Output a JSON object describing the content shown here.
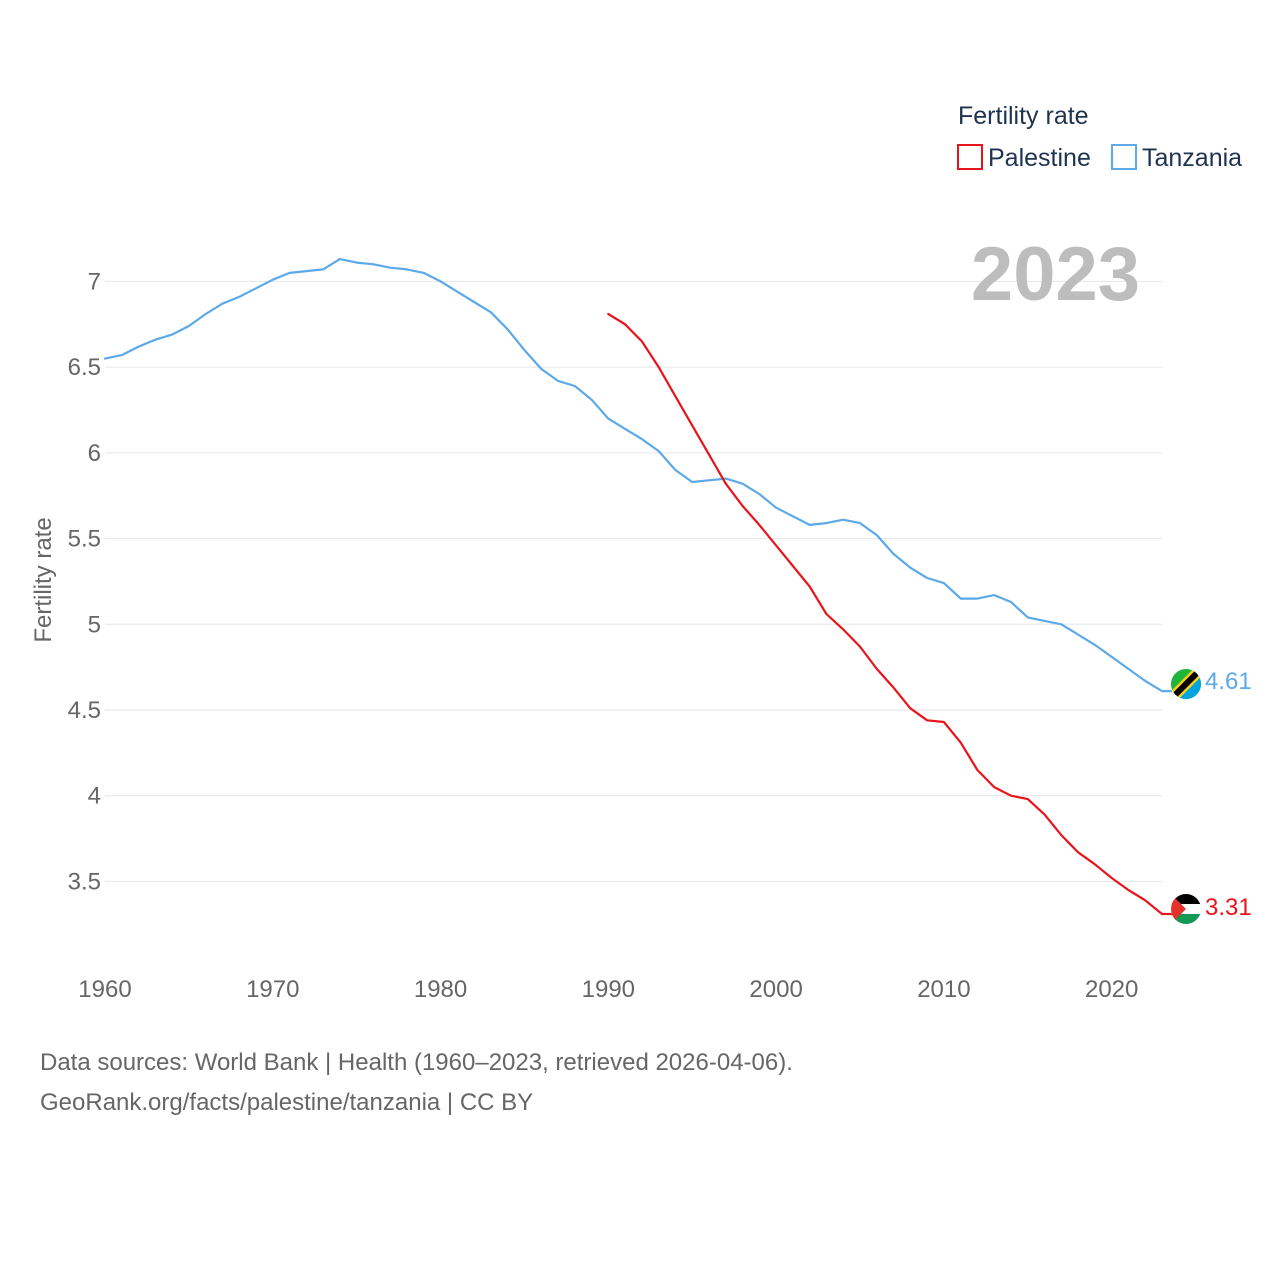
{
  "chart_data": {
    "type": "line",
    "title": "",
    "legend_title": "Fertility rate",
    "ylabel": "Fertility rate",
    "xlabel": "",
    "xlim": [
      1960,
      2023
    ],
    "ylim": [
      3.1,
      7.3
    ],
    "x_ticks": [
      1960,
      1970,
      1980,
      1990,
      2000,
      2010,
      2020
    ],
    "y_ticks": [
      3.5,
      4,
      4.5,
      5,
      5.5,
      6,
      6.5,
      7
    ],
    "current_year_label": "2023",
    "legend_position": "top-right",
    "series": [
      {
        "name": "Palestine",
        "color": "#e8141c",
        "end_label": "3.31",
        "flag": "palestine",
        "x": [
          1990,
          1991,
          1992,
          1993,
          1994,
          1995,
          1996,
          1997,
          1998,
          1999,
          2000,
          2001,
          2002,
          2003,
          2004,
          2005,
          2006,
          2007,
          2008,
          2009,
          2010,
          2011,
          2012,
          2013,
          2014,
          2015,
          2016,
          2017,
          2018,
          2019,
          2020,
          2021,
          2022,
          2023
        ],
        "values": [
          6.81,
          6.75,
          6.65,
          6.5,
          6.33,
          6.16,
          5.99,
          5.82,
          5.69,
          5.58,
          5.46,
          5.34,
          5.22,
          5.06,
          4.97,
          4.87,
          4.74,
          4.63,
          4.51,
          4.44,
          4.43,
          4.31,
          4.15,
          4.05,
          4.0,
          3.98,
          3.89,
          3.77,
          3.67,
          3.6,
          3.52,
          3.45,
          3.39,
          3.31
        ]
      },
      {
        "name": "Tanzania",
        "color": "#5ca9e8",
        "end_label": "4.61",
        "flag": "tanzania",
        "x": [
          1960,
          1961,
          1962,
          1963,
          1964,
          1965,
          1966,
          1967,
          1968,
          1969,
          1970,
          1971,
          1972,
          1973,
          1974,
          1975,
          1976,
          1977,
          1978,
          1979,
          1980,
          1981,
          1982,
          1983,
          1984,
          1985,
          1986,
          1987,
          1988,
          1989,
          1990,
          1991,
          1992,
          1993,
          1994,
          1995,
          1996,
          1997,
          1998,
          1999,
          2000,
          2001,
          2002,
          2003,
          2004,
          2005,
          2006,
          2007,
          2008,
          2009,
          2010,
          2011,
          2012,
          2013,
          2014,
          2015,
          2016,
          2017,
          2018,
          2019,
          2020,
          2021,
          2022,
          2023
        ],
        "values": [
          6.55,
          6.57,
          6.62,
          6.66,
          6.69,
          6.74,
          6.81,
          6.87,
          6.91,
          6.96,
          7.01,
          7.05,
          7.06,
          7.07,
          7.13,
          7.11,
          7.1,
          7.08,
          7.07,
          7.05,
          7.0,
          6.94,
          6.88,
          6.82,
          6.72,
          6.6,
          6.49,
          6.42,
          6.39,
          6.31,
          6.2,
          6.14,
          6.08,
          6.01,
          5.9,
          5.83,
          5.84,
          5.85,
          5.82,
          5.76,
          5.68,
          5.63,
          5.58,
          5.59,
          5.61,
          5.59,
          5.52,
          5.41,
          5.33,
          5.27,
          5.24,
          5.15,
          5.15,
          5.17,
          5.13,
          5.04,
          5.02,
          5.0,
          4.94,
          4.88,
          4.81,
          4.74,
          4.67,
          4.61
        ]
      }
    ]
  },
  "footer": {
    "source_line": "Data sources: World Bank | Health (1960–2023, retrieved 2026-04-06).",
    "credit_line": "GeoRank.org/facts/palestine/tanzania | CC BY"
  }
}
